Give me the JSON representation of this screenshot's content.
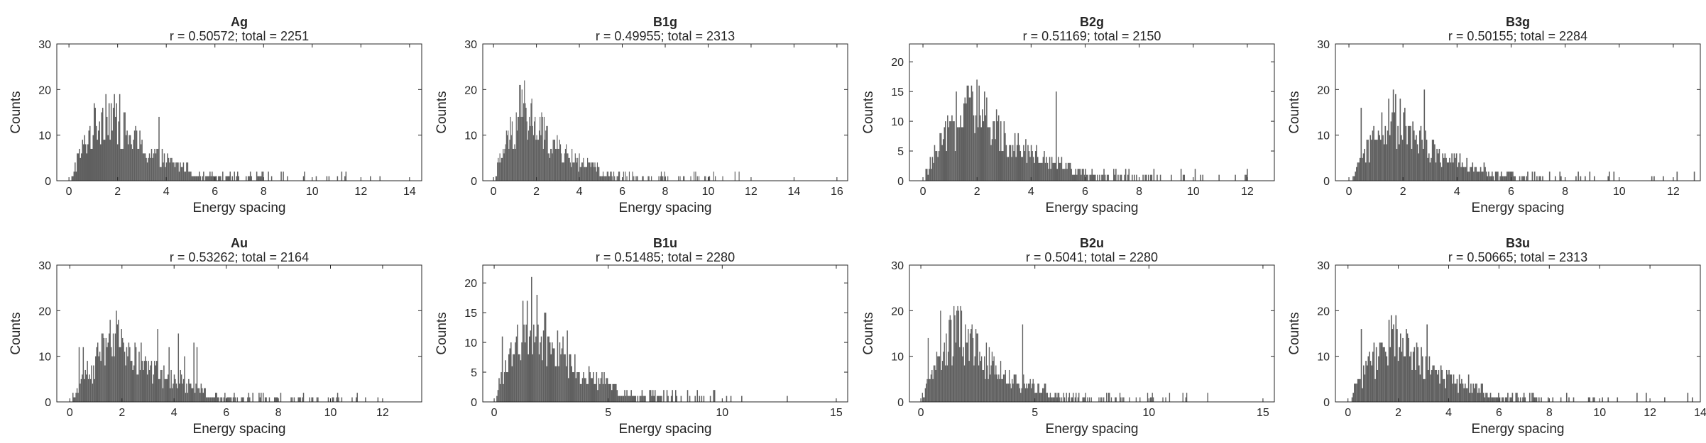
{
  "colors": {
    "bar": "#5f5f5f",
    "axis": "#262626",
    "background": "#ffffff"
  },
  "chart_data": [
    {
      "type": "bar",
      "title": "Ag",
      "subtitle": "r = 0.50572; total = 2251",
      "xlabel": "Energy spacing",
      "ylabel": "Counts",
      "xlim": [
        -0.5,
        14.5
      ],
      "ylim": [
        0,
        30
      ],
      "xticks": [
        0,
        2,
        4,
        6,
        8,
        10,
        12,
        14
      ],
      "yticks": [
        0,
        10,
        20,
        30
      ],
      "grid": false,
      "profile": {
        "xmin": 0.1,
        "xmax": 13.2,
        "xpeak": 1.5,
        "peak": 16,
        "tail": 1.9,
        "max_spike": 25,
        "noise": 0.45,
        "bins": 300
      }
    },
    {
      "type": "bar",
      "title": "B1g",
      "subtitle": "r = 0.49955; total = 2313",
      "xlabel": "Energy spacing",
      "ylabel": "Counts",
      "xlim": [
        -0.5,
        16.5
      ],
      "ylim": [
        0,
        30
      ],
      "xticks": [
        0,
        2,
        4,
        6,
        8,
        10,
        12,
        14,
        16
      ],
      "yticks": [
        0,
        10,
        20,
        30
      ],
      "grid": false,
      "profile": {
        "xmin": 0.05,
        "xmax": 11.5,
        "xpeak": 1.4,
        "peak": 16,
        "tail": 1.9,
        "max_spike": 28,
        "noise": 0.45,
        "bins": 300
      }
    },
    {
      "type": "bar",
      "title": "B2g",
      "subtitle": "r = 0.51169; total = 2150",
      "xlabel": "Energy spacing",
      "ylabel": "Counts",
      "xlim": [
        -0.5,
        13.0
      ],
      "ylim": [
        0,
        23
      ],
      "xticks": [
        0,
        2,
        4,
        6,
        8,
        10,
        12
      ],
      "yticks": [
        0,
        5,
        10,
        15,
        20
      ],
      "grid": false,
      "profile": {
        "xmin": 0.05,
        "xmax": 12.1,
        "xpeak": 1.7,
        "peak": 13,
        "tail": 2.3,
        "max_spike": 23,
        "noise": 0.45,
        "bins": 300
      }
    },
    {
      "type": "bar",
      "title": "B3g",
      "subtitle": "r = 0.50155; total = 2284",
      "xlabel": "Energy spacing",
      "ylabel": "Counts",
      "xlim": [
        -0.5,
        13.0
      ],
      "ylim": [
        0,
        30
      ],
      "xticks": [
        0,
        2,
        4,
        6,
        8,
        10,
        12
      ],
      "yticks": [
        0,
        10,
        20,
        30
      ],
      "grid": false,
      "profile": {
        "xmin": 0.05,
        "xmax": 12.8,
        "xpeak": 1.6,
        "peak": 14,
        "tail": 2.0,
        "max_spike": 25,
        "noise": 0.45,
        "bins": 300
      }
    },
    {
      "type": "bar",
      "title": "Au",
      "subtitle": "r = 0.53262; total = 2164",
      "xlabel": "Energy spacing",
      "ylabel": "Counts",
      "xlim": [
        -0.5,
        13.5
      ],
      "ylim": [
        0,
        30
      ],
      "xticks": [
        0,
        2,
        4,
        6,
        8,
        10,
        12
      ],
      "yticks": [
        0,
        10,
        20,
        30
      ],
      "grid": false,
      "profile": {
        "xmin": 0.1,
        "xmax": 12.0,
        "xpeak": 1.8,
        "peak": 14,
        "tail": 2.0,
        "max_spike": 26,
        "noise": 0.45,
        "bins": 300
      }
    },
    {
      "type": "bar",
      "title": "B1u",
      "subtitle": "r = 0.51485; total = 2280",
      "xlabel": "Energy spacing",
      "ylabel": "Counts",
      "xlim": [
        -0.5,
        15.5
      ],
      "ylim": [
        0,
        23
      ],
      "xticks": [
        0,
        5,
        10,
        15
      ],
      "yticks": [
        0,
        5,
        10,
        15,
        20
      ],
      "grid": false,
      "profile": {
        "xmin": 0.05,
        "xmax": 14.3,
        "xpeak": 1.6,
        "peak": 15,
        "tail": 2.1,
        "max_spike": 23,
        "noise": 0.45,
        "bins": 300
      }
    },
    {
      "type": "bar",
      "title": "B2u",
      "subtitle": "r = 0.5041; total = 2280",
      "xlabel": "Energy spacing",
      "ylabel": "Counts",
      "xlim": [
        -0.5,
        15.5
      ],
      "ylim": [
        0,
        30
      ],
      "xticks": [
        0,
        5,
        10,
        15
      ],
      "yticks": [
        0,
        10,
        20,
        30
      ],
      "grid": false,
      "profile": {
        "xmin": 0.05,
        "xmax": 12.6,
        "xpeak": 1.6,
        "peak": 16,
        "tail": 2.1,
        "max_spike": 28,
        "noise": 0.45,
        "bins": 300
      }
    },
    {
      "type": "bar",
      "title": "B3u",
      "subtitle": "r = 0.50665; total = 2313",
      "xlabel": "Energy spacing",
      "ylabel": "Counts",
      "xlim": [
        -0.5,
        14.0
      ],
      "ylim": [
        0,
        30
      ],
      "xticks": [
        0,
        2,
        4,
        6,
        8,
        10,
        12,
        14
      ],
      "yticks": [
        0,
        10,
        20,
        30
      ],
      "grid": false,
      "profile": {
        "xmin": 0.05,
        "xmax": 13.8,
        "xpeak": 1.8,
        "peak": 15,
        "tail": 2.0,
        "max_spike": 26,
        "noise": 0.45,
        "bins": 300
      }
    }
  ]
}
